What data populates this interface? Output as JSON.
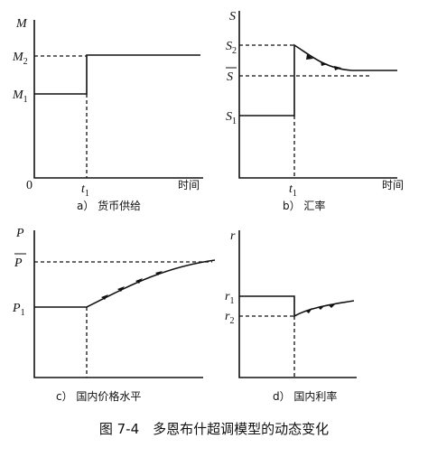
{
  "panels": [
    {
      "y_axis": "M",
      "labels": [
        {
          "text": "M",
          "sub": "2"
        },
        {
          "text": "M",
          "sub": "1"
        }
      ],
      "origin": "0",
      "t": {
        "text": "t",
        "sub": "1"
      },
      "x_axis": "时间",
      "caption": "a） 货币供给"
    },
    {
      "y_axis": "S",
      "labels": [
        {
          "text": "S",
          "sub": "2"
        },
        {
          "text": "S"
        },
        {
          "text": "S",
          "sub": "1"
        }
      ],
      "t": {
        "text": "t",
        "sub": "1"
      },
      "x_axis": "时间",
      "caption": "b） 汇率"
    },
    {
      "y_axis": "P",
      "labels": [
        {
          "text": "P"
        },
        {
          "text": "P",
          "sub": "1"
        }
      ],
      "caption": "c） 国内价格水平"
    },
    {
      "y_axis": "r",
      "labels": [
        {
          "text": "r",
          "sub": "1"
        },
        {
          "text": "r",
          "sub": "2"
        }
      ],
      "caption": "d） 国内利率"
    }
  ],
  "figure_caption": "图 7-4　多恩布什超调模型的动态变化"
}
